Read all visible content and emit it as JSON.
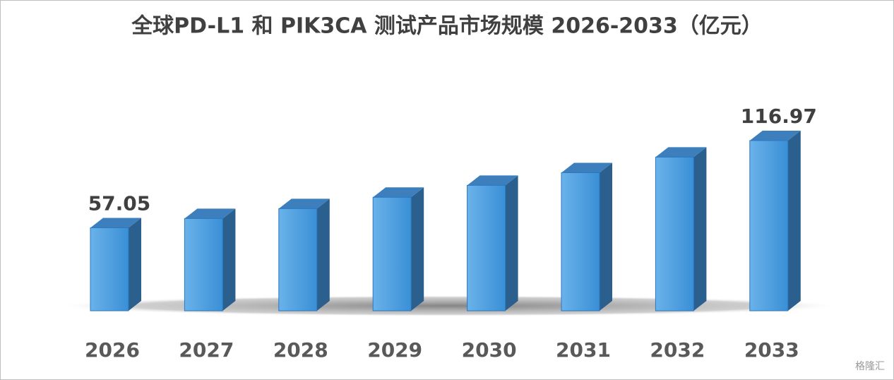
{
  "chart_data": {
    "type": "bar3d",
    "title": "全球PD-L1 和 PIK3CA 测试产品市场规模 2026-2033（亿元）",
    "categories": [
      "2026",
      "2027",
      "2028",
      "2029",
      "2030",
      "2031",
      "2032",
      "2033"
    ],
    "values": [
      57.05,
      63.4,
      70.2,
      78.0,
      86.2,
      94.9,
      105.6,
      116.97
    ],
    "data_labels": "ends",
    "color": "#4a9be0",
    "watermark": "格隆汇"
  }
}
